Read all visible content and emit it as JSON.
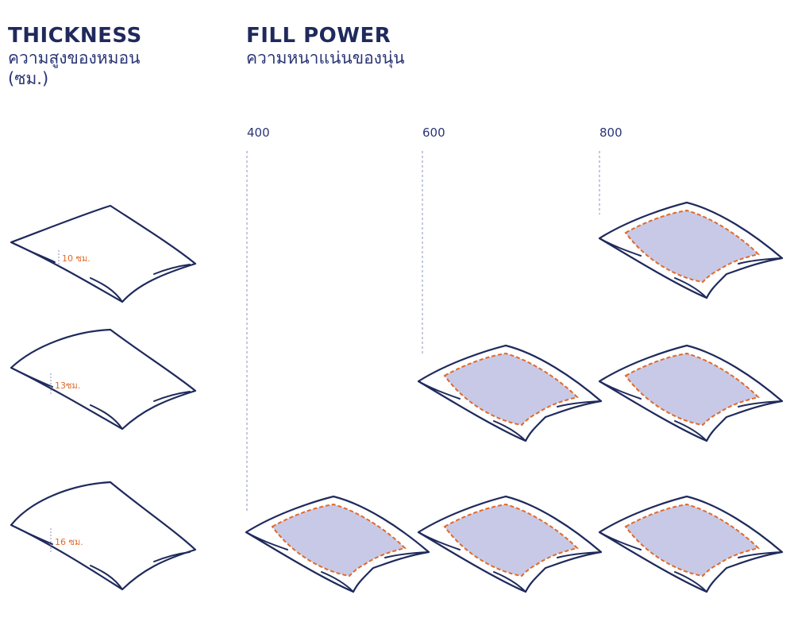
{
  "thickness": {
    "title": "THICKNESS",
    "subtitle_line1": "ความสูงของหมอน",
    "subtitle_line2": "(ซม.)",
    "rows": [
      {
        "label": "10 ซม."
      },
      {
        "label": "13ซม."
      },
      {
        "label": "16 ซม."
      }
    ]
  },
  "fill_power": {
    "title": "FILL POWER",
    "subtitle": "ความหนาแน่นของนุ่น",
    "columns": [
      "400",
      "600",
      "800"
    ]
  },
  "grid": [
    [
      false,
      false,
      true
    ],
    [
      false,
      true,
      true
    ],
    [
      true,
      true,
      true
    ]
  ],
  "colors": {
    "outline": "#1f2a5c",
    "fill": "#c8c9e6",
    "dash": "#e0692a",
    "guide": "#8a90c4"
  }
}
